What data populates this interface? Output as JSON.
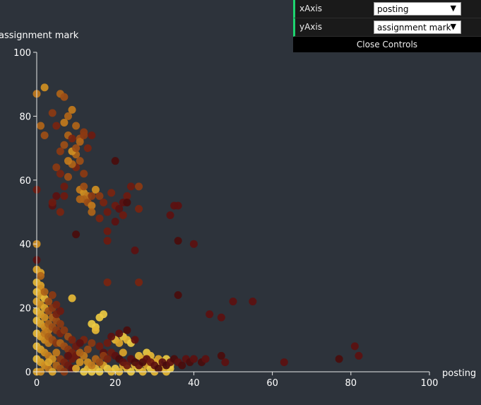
{
  "controls": {
    "rows": [
      {
        "label": "xAxis",
        "value": "posting",
        "accent": "#1ed36f"
      },
      {
        "label": "yAxis",
        "value": "assignment mark",
        "accent": "#1ed36f"
      }
    ],
    "caret": "▼",
    "close_label": "Close Controls"
  },
  "chart_data": {
    "type": "scatter",
    "xlabel": "posting",
    "ylabel": "assignment mark",
    "xlim": [
      0,
      100
    ],
    "ylim": [
      0,
      100
    ],
    "xticks": [
      0,
      20,
      40,
      60,
      80,
      100
    ],
    "yticks": [
      0,
      20,
      40,
      60,
      80,
      100
    ],
    "grid": false,
    "colors": [
      "#4a0c0c",
      "#5c1010",
      "#6e1a10",
      "#7a2410",
      "#8c3a12",
      "#9e4e16",
      "#b06418",
      "#c27a1c",
      "#d08f22",
      "#dca42a",
      "#e6b936",
      "#ecc942"
    ],
    "points": [
      [
        0,
        87,
        7
      ],
      [
        2,
        89,
        8
      ],
      [
        1,
        77,
        6
      ],
      [
        2,
        74,
        5
      ],
      [
        4,
        81,
        4
      ],
      [
        5,
        77,
        3
      ],
      [
        6,
        87,
        6
      ],
      [
        7,
        86,
        5
      ],
      [
        8,
        80,
        6
      ],
      [
        9,
        82,
        7
      ],
      [
        10,
        77,
        6
      ],
      [
        11,
        73,
        5
      ],
      [
        12,
        75,
        4
      ],
      [
        13,
        70,
        3
      ],
      [
        7,
        78,
        7
      ],
      [
        8,
        74,
        6
      ],
      [
        7,
        71,
        5
      ],
      [
        6,
        69,
        4
      ],
      [
        9,
        73,
        3
      ],
      [
        10,
        68,
        6
      ],
      [
        11,
        66,
        5
      ],
      [
        12,
        62,
        4
      ],
      [
        10,
        64,
        3
      ],
      [
        9,
        65,
        6
      ],
      [
        8,
        61,
        5
      ],
      [
        5,
        64,
        4
      ],
      [
        6,
        62,
        3
      ],
      [
        7,
        58,
        2
      ],
      [
        8,
        66,
        7
      ],
      [
        9,
        69,
        8
      ],
      [
        10,
        70,
        5
      ],
      [
        11,
        72,
        6
      ],
      [
        12,
        74,
        4
      ],
      [
        14,
        74,
        2
      ],
      [
        20,
        66,
        0
      ],
      [
        5,
        55,
        1
      ],
      [
        7,
        55,
        2
      ],
      [
        6,
        50,
        3
      ],
      [
        4,
        52,
        1
      ],
      [
        0,
        57,
        2
      ],
      [
        4,
        53,
        2
      ],
      [
        11,
        57,
        7
      ],
      [
        12,
        56,
        8
      ],
      [
        13,
        55,
        7
      ],
      [
        12,
        54,
        6
      ],
      [
        13,
        53,
        5
      ],
      [
        14,
        52,
        7
      ],
      [
        14,
        55,
        4
      ],
      [
        15,
        57,
        8
      ],
      [
        16,
        55,
        4
      ],
      [
        17,
        53,
        3
      ],
      [
        18,
        50,
        2
      ],
      [
        19,
        56,
        3
      ],
      [
        20,
        52,
        2
      ],
      [
        21,
        51,
        1
      ],
      [
        22,
        49,
        2
      ],
      [
        22,
        53,
        1
      ],
      [
        24,
        58,
        2
      ],
      [
        26,
        58,
        4
      ],
      [
        26,
        51,
        3
      ],
      [
        23,
        55,
        2
      ],
      [
        23,
        53,
        0
      ],
      [
        18,
        44,
        2
      ],
      [
        18,
        41,
        2
      ],
      [
        18,
        28,
        3
      ],
      [
        26,
        28,
        3
      ],
      [
        25,
        38,
        1
      ],
      [
        10,
        43,
        0
      ],
      [
        34,
        49,
        1
      ],
      [
        35,
        52,
        1
      ],
      [
        36,
        52,
        1
      ],
      [
        36,
        41,
        0
      ],
      [
        40,
        40,
        1
      ],
      [
        11,
        54,
        6
      ],
      [
        12,
        58,
        5
      ],
      [
        14,
        50,
        6
      ],
      [
        16,
        48,
        3
      ],
      [
        20,
        47,
        1
      ],
      [
        0,
        40,
        8
      ],
      [
        0,
        32,
        9
      ],
      [
        1,
        31,
        9
      ],
      [
        0,
        28,
        10
      ],
      [
        1,
        27,
        9
      ],
      [
        1,
        26,
        8
      ],
      [
        0,
        25,
        10
      ],
      [
        1,
        24,
        9
      ],
      [
        2,
        23,
        10
      ],
      [
        0,
        22,
        9
      ],
      [
        1,
        21,
        8
      ],
      [
        2,
        20,
        9
      ],
      [
        0,
        19,
        10
      ],
      [
        1,
        18,
        9
      ],
      [
        2,
        17,
        8
      ],
      [
        0,
        16,
        10
      ],
      [
        1,
        15,
        9
      ],
      [
        2,
        14,
        8
      ],
      [
        3,
        13,
        7
      ],
      [
        0,
        12,
        10
      ],
      [
        1,
        11,
        9
      ],
      [
        2,
        10,
        8
      ],
      [
        3,
        9,
        7
      ],
      [
        0,
        8,
        10
      ],
      [
        1,
        7,
        9
      ],
      [
        2,
        6,
        8
      ],
      [
        3,
        5,
        7
      ],
      [
        0,
        4,
        10
      ],
      [
        1,
        3,
        9
      ],
      [
        2,
        2,
        8
      ],
      [
        3,
        1,
        7
      ],
      [
        0,
        0,
        9
      ],
      [
        1,
        0,
        8
      ],
      [
        4,
        0,
        9
      ],
      [
        2,
        12,
        7
      ],
      [
        3,
        11,
        6
      ],
      [
        4,
        10,
        5
      ],
      [
        5,
        9,
        4
      ],
      [
        3,
        15,
        6
      ],
      [
        4,
        14,
        5
      ],
      [
        5,
        13,
        4
      ],
      [
        6,
        12,
        3
      ],
      [
        4,
        17,
        6
      ],
      [
        5,
        16,
        5
      ],
      [
        6,
        15,
        4
      ],
      [
        3,
        19,
        5
      ],
      [
        4,
        20,
        4
      ],
      [
        5,
        18,
        3
      ],
      [
        6,
        19,
        2
      ],
      [
        2,
        25,
        6
      ],
      [
        3,
        22,
        5
      ],
      [
        4,
        24,
        4
      ],
      [
        5,
        21,
        3
      ],
      [
        1,
        30,
        6
      ],
      [
        0,
        35,
        1
      ],
      [
        7,
        13,
        4
      ],
      [
        8,
        11,
        5
      ],
      [
        9,
        10,
        3
      ],
      [
        6,
        9,
        6
      ],
      [
        7,
        8,
        5
      ],
      [
        8,
        7,
        4
      ],
      [
        9,
        6,
        3
      ],
      [
        10,
        5,
        2
      ],
      [
        6,
        4,
        4
      ],
      [
        7,
        3,
        3
      ],
      [
        8,
        2,
        2
      ],
      [
        9,
        1,
        1
      ],
      [
        5,
        6,
        7
      ],
      [
        4,
        4,
        8
      ],
      [
        3,
        3,
        9
      ],
      [
        5,
        2,
        6
      ],
      [
        6,
        1,
        5
      ],
      [
        7,
        0,
        4
      ],
      [
        9,
        23,
        10
      ],
      [
        14,
        15,
        11
      ],
      [
        15,
        14,
        11
      ],
      [
        15,
        13,
        10
      ],
      [
        16,
        17,
        11
      ],
      [
        17,
        18,
        11
      ],
      [
        20,
        10,
        10
      ],
      [
        21,
        9,
        9
      ],
      [
        22,
        11,
        11
      ],
      [
        23,
        10,
        10
      ],
      [
        24,
        9,
        11
      ],
      [
        22,
        6,
        9
      ],
      [
        26,
        5,
        10
      ],
      [
        28,
        6,
        11
      ],
      [
        29,
        5,
        10
      ],
      [
        27,
        4,
        9
      ],
      [
        30,
        3,
        10
      ],
      [
        31,
        4,
        9
      ],
      [
        33,
        4,
        11
      ],
      [
        34,
        2,
        10
      ],
      [
        16,
        8,
        2
      ],
      [
        19,
        11,
        1
      ],
      [
        18,
        9,
        2
      ],
      [
        21,
        12,
        1
      ],
      [
        23,
        13,
        0
      ],
      [
        25,
        10,
        1
      ],
      [
        17,
        6,
        1
      ],
      [
        12,
        0,
        11
      ],
      [
        13,
        1,
        10
      ],
      [
        14,
        0,
        11
      ],
      [
        15,
        1,
        10
      ],
      [
        16,
        0,
        11
      ],
      [
        17,
        2,
        9
      ],
      [
        18,
        1,
        11
      ],
      [
        19,
        0,
        10
      ],
      [
        20,
        1,
        11
      ],
      [
        21,
        0,
        10
      ],
      [
        22,
        2,
        9
      ],
      [
        23,
        1,
        10
      ],
      [
        24,
        0,
        11
      ],
      [
        25,
        2,
        10
      ],
      [
        26,
        1,
        11
      ],
      [
        27,
        0,
        10
      ],
      [
        28,
        2,
        9
      ],
      [
        29,
        1,
        11
      ],
      [
        30,
        0,
        10
      ],
      [
        31,
        2,
        11
      ],
      [
        32,
        1,
        9
      ],
      [
        33,
        0,
        10
      ],
      [
        34,
        1,
        11
      ],
      [
        13,
        3,
        8
      ],
      [
        14,
        2,
        7
      ],
      [
        15,
        4,
        6
      ],
      [
        16,
        3,
        5
      ],
      [
        17,
        5,
        4
      ],
      [
        18,
        4,
        3
      ],
      [
        19,
        6,
        2
      ],
      [
        20,
        5,
        1
      ],
      [
        21,
        4,
        0
      ],
      [
        22,
        3,
        1
      ],
      [
        23,
        2,
        2
      ],
      [
        24,
        4,
        1
      ],
      [
        25,
        3,
        0
      ],
      [
        26,
        2,
        1
      ],
      [
        27,
        3,
        0
      ],
      [
        28,
        4,
        1
      ],
      [
        29,
        3,
        2
      ],
      [
        30,
        2,
        1
      ],
      [
        31,
        1,
        0
      ],
      [
        32,
        3,
        1
      ],
      [
        33,
        2,
        0
      ],
      [
        34,
        3,
        1
      ],
      [
        35,
        4,
        0
      ],
      [
        36,
        3,
        1
      ],
      [
        37,
        2,
        0
      ],
      [
        38,
        4,
        1
      ],
      [
        39,
        3,
        0
      ],
      [
        40,
        4,
        1
      ],
      [
        42,
        3,
        0
      ],
      [
        43,
        4,
        1
      ],
      [
        10,
        1,
        9
      ],
      [
        11,
        3,
        8
      ],
      [
        12,
        5,
        7
      ],
      [
        11,
        6,
        6
      ],
      [
        13,
        7,
        5
      ],
      [
        14,
        9,
        4
      ],
      [
        12,
        10,
        3
      ],
      [
        10,
        8,
        2
      ],
      [
        11,
        9,
        1
      ],
      [
        9,
        4,
        2
      ],
      [
        8,
        5,
        1
      ],
      [
        44,
        18,
        1
      ],
      [
        47,
        17,
        1
      ],
      [
        50,
        22,
        1
      ],
      [
        55,
        22,
        1
      ],
      [
        47,
        5,
        0
      ],
      [
        48,
        3,
        1
      ],
      [
        36,
        24,
        0
      ],
      [
        63,
        3,
        1
      ],
      [
        77,
        4,
        0
      ],
      [
        81,
        8,
        1
      ],
      [
        82,
        5,
        1
      ]
    ]
  }
}
